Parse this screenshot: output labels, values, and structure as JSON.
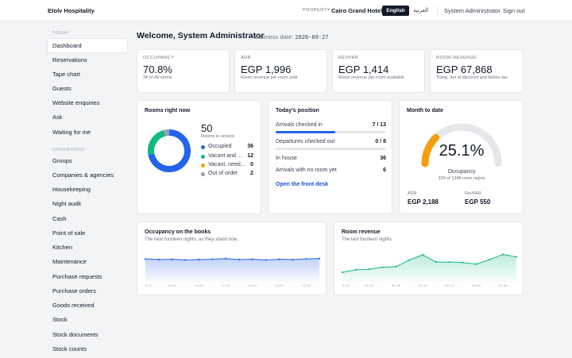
{
  "header": {
    "brand": "Etolv Hospitality",
    "property_label": "PROPERTY",
    "property_name": "Cairo Grand Hotel",
    "lang_active": "English",
    "lang_other": "العربية",
    "user": "System Administrator",
    "signout": "Sign out"
  },
  "sidebar": {
    "today_heading": "TODAY",
    "today_items": [
      "Dashboard",
      "Reservations",
      "Tape chart",
      "Guests",
      "Website enquiries",
      "Ask",
      "Waiting for me"
    ],
    "operations_heading": "OPERATIONS",
    "operations_items": [
      "Groups",
      "Companies & agencies",
      "Housekeeping",
      "Night audit",
      "Cash",
      "Point of sale",
      "Kitchen",
      "Maintenance",
      "Purchase requests",
      "Purchase orders",
      "Goods received",
      "Stock",
      "Stock documents",
      "Stock counts"
    ]
  },
  "main": {
    "welcome": "Welcome, System Administrator",
    "business_date_label": "Business date:",
    "business_date": "2026-09-27"
  },
  "kpis": [
    {
      "label": "OCCUPANCY",
      "value": "70.8%",
      "sub": "34 of 48 rooms"
    },
    {
      "label": "ADR",
      "value": "EGP 1,996",
      "sub": "Room revenue per room sold"
    },
    {
      "label": "REVPAR",
      "value": "EGP 1,414",
      "sub": "Room revenue per room available"
    },
    {
      "label": "ROOM REVENUE",
      "value": "EGP 67,868",
      "sub": "Today, net of discount and before tax"
    }
  ],
  "rooms_now": {
    "title": "Rooms right now",
    "total": "50",
    "total_label": "Rooms in service",
    "segments": [
      {
        "label": "Occupied",
        "value": 36,
        "color": "#2563eb"
      },
      {
        "label": "Vacant and ...",
        "value": 12,
        "color": "#10b981"
      },
      {
        "label": "Vacant, need...",
        "value": 0,
        "color": "#f59e0b"
      },
      {
        "label": "Out of order",
        "value": 2,
        "color": "#94a3b8"
      }
    ]
  },
  "position": {
    "title": "Today's position",
    "arrivals_label": "Arrivals checked in",
    "arrivals_value": "7 / 13",
    "arrivals_fraction": 0.538,
    "departures_label": "Departures checked out",
    "departures_value": "0 / 8",
    "inhouse_label": "In house",
    "inhouse_value": "36",
    "noroom_label": "Arrivals with no room yet",
    "noroom_value": "6",
    "link": "Open the front desk"
  },
  "month": {
    "title": "Month to date",
    "occupancy": "25.1%",
    "occupancy_fraction": 0.251,
    "occupancy_label": "Occupancy",
    "occupancy_sub": "339 of 1348 room nights",
    "adr_label": "ADR",
    "adr_value": "EGP 2,188",
    "revpar_label": "RevPAR",
    "revpar_value": "EGP 550",
    "accent": "#f59e0b"
  },
  "chart_data": [
    {
      "type": "area",
      "title": "Occupancy on the books",
      "subtitle": "The next fourteen nights, as they stand now.",
      "x": [
        "9-27",
        "9-28",
        "9-29",
        "9-30",
        "10-01",
        "10-02",
        "10-03",
        "10-04",
        "10-05",
        "10-06",
        "10-07",
        "10-08",
        "10-09",
        "10-10"
      ],
      "tick_labels": [
        "9-27",
        "09-29",
        "10-01",
        "10-03",
        "10-05",
        "10-07",
        "10-09"
      ],
      "values": [
        71,
        69,
        70,
        68,
        69,
        70,
        72,
        69,
        70,
        68,
        70,
        69,
        71,
        72
      ],
      "color": "#2563eb"
    },
    {
      "type": "area",
      "title": "Room revenue",
      "subtitle": "The last fourteen nights.",
      "x": [
        "9-14",
        "9-15",
        "9-16",
        "9-17",
        "9-18",
        "9-19",
        "9-20",
        "9-21",
        "9-22",
        "9-23",
        "9-24",
        "9-25",
        "9-26",
        "9-27"
      ],
      "tick_labels": [
        "9-14",
        "09-16",
        "09-18",
        "09-20",
        "09-22",
        "09-24",
        "09-26"
      ],
      "values": [
        20,
        25,
        26,
        30,
        31,
        44,
        54,
        40,
        40,
        39,
        36,
        45,
        55,
        50
      ],
      "color": "#10b981"
    }
  ]
}
